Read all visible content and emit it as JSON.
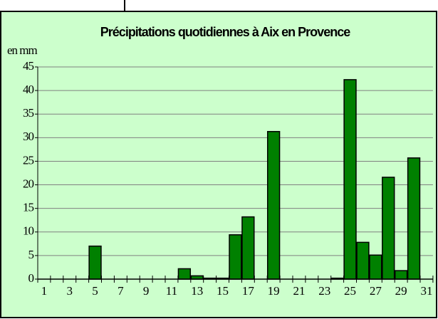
{
  "chart_data": {
    "type": "bar",
    "title": "Précipitations quotidiennes à Aix en Provence",
    "y_label": "en mm",
    "categories": [
      "1",
      null,
      "3",
      null,
      "5",
      null,
      "7",
      null,
      "9",
      null,
      "11",
      null,
      "13",
      null,
      "15",
      null,
      "17",
      null,
      "19",
      null,
      "21",
      null,
      "23",
      null,
      "25",
      null,
      "27",
      null,
      "29",
      null,
      "31"
    ],
    "values": [
      0,
      0,
      0,
      0,
      7,
      0,
      0,
      0,
      0,
      0,
      0,
      2.2,
      0.7,
      0.2,
      0.2,
      9.4,
      13.2,
      0,
      31.3,
      0,
      0,
      0,
      0,
      0.2,
      42.3,
      7.8,
      5.1,
      21.6,
      1.8,
      25.7,
      0
    ],
    "color": "#008000",
    "ylim": [
      0,
      45
    ],
    "yticks": [
      0,
      5,
      10,
      15,
      20,
      25,
      30,
      35,
      40,
      45
    ],
    "grid": true
  }
}
